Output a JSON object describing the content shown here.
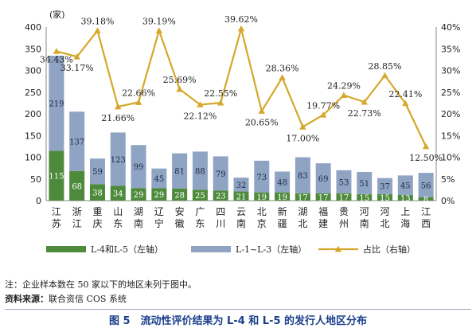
{
  "chart_data": {
    "type": "bar",
    "stacked": true,
    "unit_label": "(家)",
    "categories": [
      [
        "江",
        "苏"
      ],
      [
        "浙",
        "江"
      ],
      [
        "重",
        "庆"
      ],
      [
        "山",
        "东"
      ],
      [
        "湖",
        "南"
      ],
      [
        "辽",
        "宁"
      ],
      [
        "安",
        "徽"
      ],
      [
        "广",
        "东"
      ],
      [
        "四",
        "川"
      ],
      [
        "云",
        "南"
      ],
      [
        "北",
        "京"
      ],
      [
        "新",
        "疆"
      ],
      [
        "湖",
        "北"
      ],
      [
        "福",
        "建"
      ],
      [
        "贵",
        "州"
      ],
      [
        "河",
        "南"
      ],
      [
        "河",
        "北"
      ],
      [
        "上",
        "海"
      ],
      [
        "江",
        "西"
      ]
    ],
    "series": [
      {
        "name": "L-4和L-5（左轴）",
        "axis": "left",
        "type": "bar",
        "color": "#4e8a3c",
        "values": [
          115,
          68,
          38,
          34,
          29,
          29,
          28,
          25,
          23,
          21,
          19,
          19,
          17,
          17,
          17,
          15,
          15,
          13,
          8
        ]
      },
      {
        "name": "L-1~L-3（左轴）",
        "axis": "left",
        "type": "bar",
        "color": "#8fa3c3",
        "values": [
          219,
          137,
          59,
          123,
          99,
          45,
          81,
          88,
          79,
          32,
          73,
          48,
          83,
          69,
          53,
          51,
          37,
          45,
          56
        ]
      },
      {
        "name": "占比（右轴）",
        "axis": "right",
        "type": "line",
        "color": "#d4a82a",
        "values": [
          34.43,
          33.17,
          39.18,
          21.66,
          22.66,
          39.19,
          25.69,
          22.12,
          22.55,
          39.62,
          20.65,
          28.36,
          17.0,
          19.77,
          24.29,
          22.73,
          28.85,
          22.41,
          12.5
        ],
        "labels": [
          "34.43%",
          "33.17%",
          "39.18%",
          "21.66%",
          "22.66%",
          "39.19%",
          "25.69%",
          "22.12%",
          "22.55%",
          "39.62%",
          "20.65%",
          "28.36%",
          "17.00%",
          "19.77%",
          "24.29%",
          "22.73%",
          "28.85%",
          "22.41%",
          "12.50%"
        ]
      }
    ],
    "y_left": {
      "min": 0,
      "max": 400,
      "step": 50,
      "ticks": [
        "0",
        "50",
        "100",
        "150",
        "200",
        "250",
        "300",
        "350",
        "400"
      ]
    },
    "y_right": {
      "min": 0,
      "max": 40,
      "step": 5,
      "ticks": [
        "0%",
        "5%",
        "10%",
        "15%",
        "20%",
        "25%",
        "30%",
        "35%",
        "40%"
      ]
    },
    "grid": false,
    "legend": "bottom"
  },
  "notes": {
    "note1": "注：企业样本数在 50 家以下的地区未列于图中。",
    "source_label": "资料来源：",
    "source_text": "联合资信 COS 系统"
  },
  "caption": "图 5　流动性评价结果为 L-4 和 L-5 的发行人地区分布"
}
